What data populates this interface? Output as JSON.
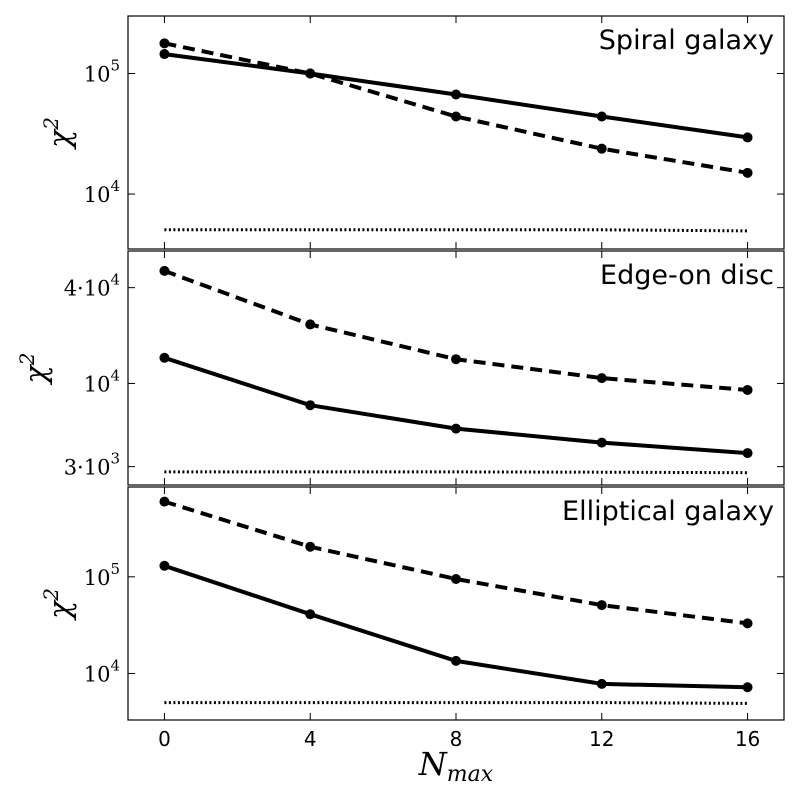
{
  "chart_data": [
    {
      "type": "line",
      "title": "Spiral galaxy",
      "ylabel": "χ²",
      "yscale": "log",
      "ylim": [
        3500,
        300000
      ],
      "yticks": [
        {
          "value": 100000,
          "base": "10",
          "exp": "5"
        },
        {
          "value": 10000,
          "base": "10",
          "exp": "4"
        }
      ],
      "x": [
        0,
        4,
        8,
        12,
        16
      ],
      "series": [
        {
          "style": "solid",
          "values": [
            145000,
            100000,
            67000,
            44000,
            29500
          ]
        },
        {
          "style": "dashed",
          "values": [
            178000,
            100000,
            44000,
            23800,
            15000
          ]
        },
        {
          "style": "dotted",
          "values": [
            5050,
            5050,
            5050,
            5050,
            4950
          ]
        }
      ]
    },
    {
      "type": "line",
      "title": "Edge-on disc",
      "ylabel": "χ²",
      "yscale": "log",
      "ylim": [
        2300,
        68000
      ],
      "yticks": [
        {
          "value": 40000,
          "base": "4·10",
          "exp": "4"
        },
        {
          "value": 10000,
          "base": "10",
          "exp": "4"
        },
        {
          "value": 3000,
          "base": "3·10",
          "exp": "3"
        }
      ],
      "x": [
        0,
        4,
        8,
        12,
        16
      ],
      "series": [
        {
          "style": "solid",
          "values": [
            14500,
            7300,
            5200,
            4250,
            3650
          ]
        },
        {
          "style": "dashed",
          "values": [
            51000,
            23500,
            14200,
            10800,
            9100
          ]
        },
        {
          "style": "dotted",
          "values": [
            2780,
            2780,
            2780,
            2770,
            2750
          ]
        }
      ]
    },
    {
      "type": "line",
      "title": "Elliptical galaxy",
      "ylabel": "χ²",
      "yscale": "log",
      "ylim": [
        3300,
        850000
      ],
      "yticks": [
        {
          "value": 100000,
          "base": "10",
          "exp": "5"
        },
        {
          "value": 10000,
          "base": "10",
          "exp": "4"
        }
      ],
      "x": [
        0,
        4,
        8,
        12,
        16
      ],
      "series": [
        {
          "style": "solid",
          "values": [
            130000,
            41000,
            13500,
            7800,
            7200
          ]
        },
        {
          "style": "dashed",
          "values": [
            600000,
            205000,
            95000,
            51000,
            33000
          ]
        },
        {
          "style": "dotted",
          "values": [
            5000,
            5000,
            5000,
            5000,
            4900
          ]
        }
      ]
    }
  ],
  "x_axis": {
    "label_base": "N",
    "label_sub": "max",
    "xlim": [
      -1,
      17
    ],
    "ticks": [
      0,
      4,
      8,
      12,
      16
    ],
    "tick_labels": [
      "0",
      "4",
      "8",
      "12",
      "16"
    ]
  }
}
